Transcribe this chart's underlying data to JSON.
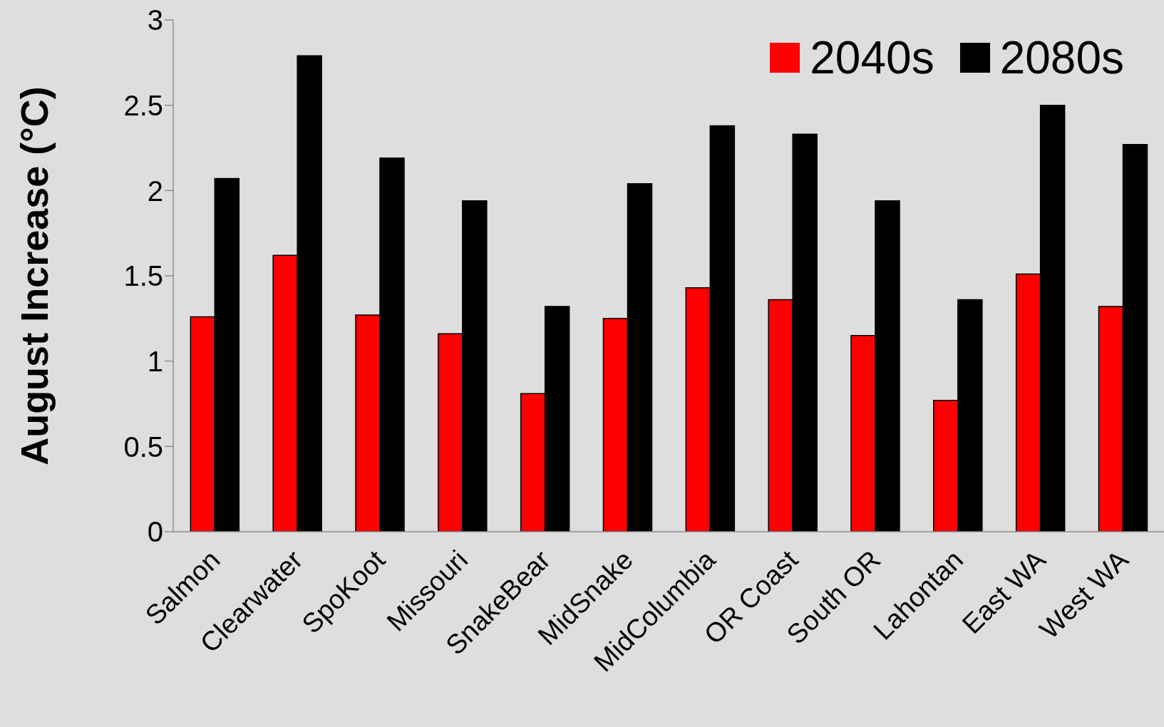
{
  "chart_data": {
    "type": "bar",
    "ylabel": "August Increase (°C)",
    "categories": [
      "Salmon",
      "Clearwater",
      "SpoKoot",
      "Missouri",
      "SnakeBear",
      "MidSnake",
      "MidColumbia",
      "OR Coast",
      "South OR",
      "Lahontan",
      "East WA",
      "West WA"
    ],
    "series": [
      {
        "name": "2040s",
        "color": "#ff0000",
        "values": [
          1.26,
          1.62,
          1.27,
          1.16,
          0.81,
          1.25,
          1.43,
          1.36,
          1.15,
          0.77,
          1.51,
          1.32
        ]
      },
      {
        "name": "2080s",
        "color": "#000000",
        "values": [
          2.07,
          2.79,
          2.19,
          1.94,
          1.32,
          2.04,
          2.38,
          2.33,
          1.94,
          1.36,
          2.5,
          2.27
        ]
      }
    ],
    "ylim": [
      0,
      3
    ],
    "yticks": [
      0,
      0.5,
      1,
      1.5,
      2,
      2.5,
      3
    ],
    "legend": "top right"
  }
}
